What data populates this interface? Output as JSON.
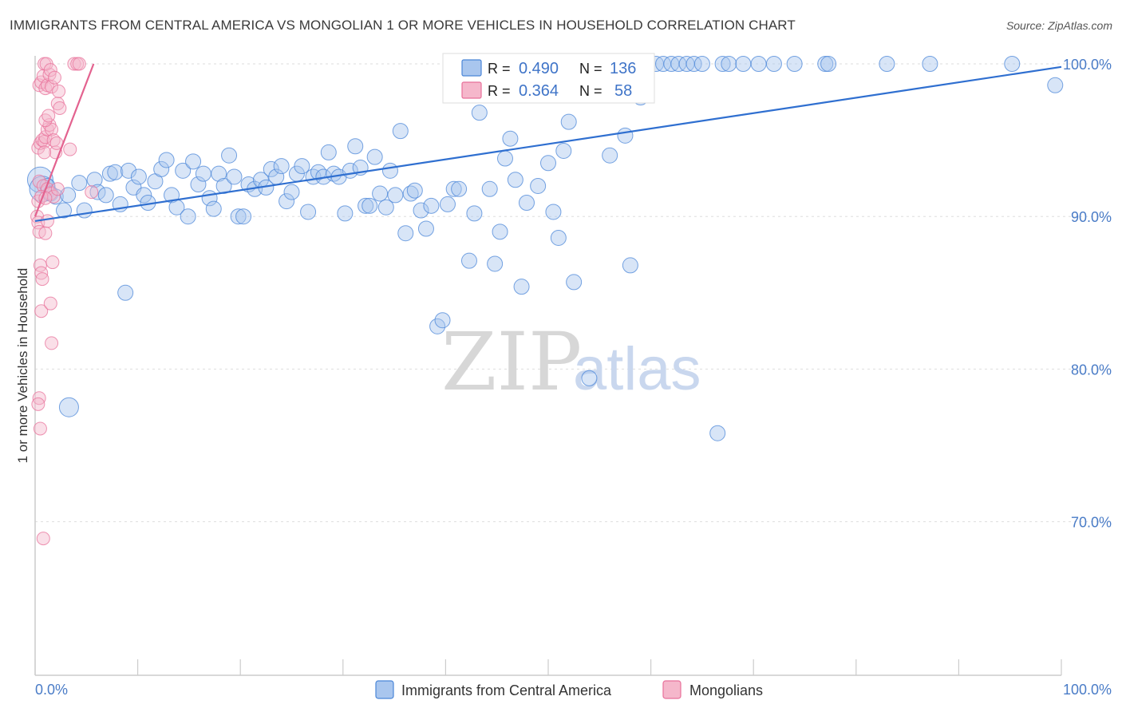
{
  "title": "IMMIGRANTS FROM CENTRAL AMERICA VS MONGOLIAN 1 OR MORE VEHICLES IN HOUSEHOLD CORRELATION CHART",
  "source": "Source: ZipAtlas.com",
  "watermark": {
    "zip": "ZIP",
    "atlas": "atlas"
  },
  "colors": {
    "blue": "#4a86d8",
    "blue_fill": "#a9c6ee",
    "blue_line": "#2f6fd0",
    "pink": "#e8709a",
    "pink_fill": "#f5b7cb",
    "pink_line": "#e3628f",
    "grid": "#dddddd",
    "tick_label": "#4a7cc7"
  },
  "legend": {
    "rows": [
      {
        "r_label": "R = ",
        "r_value": "0.490",
        "n_label": "N = ",
        "n_value": "136"
      },
      {
        "r_label": "R = ",
        "r_value": "0.364",
        "n_label": "N = ",
        "n_value": "58"
      }
    ]
  },
  "chart_data": {
    "type": "scatter",
    "xlabel": "",
    "ylabel": "1 or more Vehicles in Household",
    "xlim": [
      0,
      100
    ],
    "ylim": [
      60,
      100
    ],
    "x_tick_labels": [
      {
        "value": 0,
        "label": "0.0%"
      },
      {
        "value": 100,
        "label": "100.0%"
      }
    ],
    "y_tick_labels": [
      {
        "value": 100,
        "label": "100.0%"
      },
      {
        "value": 90,
        "label": "90.0%"
      },
      {
        "value": 80,
        "label": "80.0%"
      },
      {
        "value": 70,
        "label": "70.0%"
      }
    ],
    "grid": true,
    "legend_position": "top-center",
    "series": [
      {
        "name": "Immigrants from Central America",
        "color": "#4a86d8",
        "trend": {
          "x": [
            0,
            100
          ],
          "y": [
            89.7,
            99.8
          ]
        },
        "points": [
          [
            0.5,
            92.4
          ],
          [
            0.7,
            91.8
          ],
          [
            1.2,
            92.0
          ],
          [
            1.5,
            91.5
          ],
          [
            2.0,
            91.3
          ],
          [
            2.8,
            90.4
          ],
          [
            3.2,
            91.4
          ],
          [
            4.8,
            90.4
          ],
          [
            4.3,
            92.2
          ],
          [
            5.8,
            92.4
          ],
          [
            6.1,
            91.6
          ],
          [
            6.9,
            91.4
          ],
          [
            7.3,
            92.8
          ],
          [
            7.8,
            92.9
          ],
          [
            8.3,
            90.8
          ],
          [
            9.1,
            93.0
          ],
          [
            9.6,
            91.9
          ],
          [
            10.1,
            92.6
          ],
          [
            10.6,
            91.4
          ],
          [
            11.0,
            90.9
          ],
          [
            11.7,
            92.3
          ],
          [
            12.3,
            93.1
          ],
          [
            12.8,
            93.7
          ],
          [
            13.3,
            91.4
          ],
          [
            13.8,
            90.6
          ],
          [
            14.4,
            93.0
          ],
          [
            14.9,
            90.0
          ],
          [
            15.4,
            93.6
          ],
          [
            15.9,
            92.1
          ],
          [
            16.4,
            92.8
          ],
          [
            17.0,
            91.2
          ],
          [
            17.4,
            90.5
          ],
          [
            17.9,
            92.8
          ],
          [
            18.4,
            92.0
          ],
          [
            18.9,
            94.0
          ],
          [
            19.4,
            92.6
          ],
          [
            19.8,
            90.0
          ],
          [
            20.3,
            90.0
          ],
          [
            20.8,
            92.1
          ],
          [
            21.4,
            91.8
          ],
          [
            22.0,
            92.4
          ],
          [
            22.5,
            91.9
          ],
          [
            23.0,
            93.1
          ],
          [
            23.5,
            92.6
          ],
          [
            24.0,
            93.3
          ],
          [
            24.5,
            91.0
          ],
          [
            25.0,
            91.6
          ],
          [
            25.5,
            92.8
          ],
          [
            26.0,
            93.3
          ],
          [
            26.6,
            90.3
          ],
          [
            27.1,
            92.6
          ],
          [
            27.6,
            92.9
          ],
          [
            28.1,
            92.6
          ],
          [
            28.6,
            94.2
          ],
          [
            29.1,
            92.8
          ],
          [
            29.6,
            92.6
          ],
          [
            30.2,
            90.2
          ],
          [
            30.7,
            93.0
          ],
          [
            31.2,
            94.6
          ],
          [
            31.7,
            93.2
          ],
          [
            32.2,
            90.7
          ],
          [
            32.6,
            90.7
          ],
          [
            33.1,
            93.9
          ],
          [
            33.6,
            91.5
          ],
          [
            34.2,
            90.6
          ],
          [
            34.6,
            93.0
          ],
          [
            35.1,
            91.4
          ],
          [
            35.6,
            95.6
          ],
          [
            36.1,
            88.9
          ],
          [
            36.6,
            91.5
          ],
          [
            37.0,
            91.7
          ],
          [
            37.6,
            90.4
          ],
          [
            38.1,
            89.2
          ],
          [
            38.6,
            90.7
          ],
          [
            39.2,
            82.8
          ],
          [
            39.7,
            83.2
          ],
          [
            40.2,
            90.8
          ],
          [
            40.8,
            91.8
          ],
          [
            41.3,
            91.8
          ],
          [
            41.8,
            98.0
          ],
          [
            42.3,
            87.1
          ],
          [
            42.8,
            90.2
          ],
          [
            43.3,
            96.8
          ],
          [
            43.8,
            100.0
          ],
          [
            44.3,
            91.8
          ],
          [
            44.8,
            86.9
          ],
          [
            45.3,
            89.0
          ],
          [
            45.8,
            93.8
          ],
          [
            46.3,
            95.1
          ],
          [
            46.8,
            92.4
          ],
          [
            47.4,
            85.4
          ],
          [
            47.9,
            90.9
          ],
          [
            48.4,
            100.0
          ],
          [
            49.0,
            92.0
          ],
          [
            49.5,
            100.0
          ],
          [
            50.0,
            93.5
          ],
          [
            50.5,
            90.3
          ],
          [
            51.0,
            88.6
          ],
          [
            51.5,
            94.3
          ],
          [
            52.0,
            96.2
          ],
          [
            52.5,
            85.7
          ],
          [
            53.0,
            100.0
          ],
          [
            53.5,
            98.6
          ],
          [
            54.0,
            79.4
          ],
          [
            54.5,
            100.0
          ],
          [
            55.0,
            100.0
          ],
          [
            55.5,
            100.0
          ],
          [
            56.0,
            94.0
          ],
          [
            56.5,
            100.0
          ],
          [
            57.0,
            100.0
          ],
          [
            57.5,
            95.3
          ],
          [
            58.0,
            86.8
          ],
          [
            58.5,
            100.0
          ],
          [
            59.0,
            97.8
          ],
          [
            60.5,
            100.0
          ],
          [
            61.2,
            100.0
          ],
          [
            62.0,
            100.0
          ],
          [
            62.7,
            100.0
          ],
          [
            63.5,
            100.0
          ],
          [
            64.2,
            100.0
          ],
          [
            65.0,
            100.0
          ],
          [
            66.5,
            75.8
          ],
          [
            67.0,
            100.0
          ],
          [
            67.6,
            100.0
          ],
          [
            69.0,
            100.0
          ],
          [
            70.5,
            100.0
          ],
          [
            72.0,
            100.0
          ],
          [
            74.0,
            100.0
          ],
          [
            77.0,
            100.0
          ],
          [
            77.3,
            100.0
          ],
          [
            83.0,
            100.0
          ],
          [
            87.2,
            100.0
          ],
          [
            95.2,
            100.0
          ],
          [
            99.4,
            98.6
          ],
          [
            3.3,
            77.5
          ],
          [
            8.8,
            85.0
          ]
        ]
      },
      {
        "name": "Mongolians",
        "color": "#e8709a",
        "trend": {
          "x": [
            0,
            5.7
          ],
          "y": [
            90.0,
            100.0
          ]
        },
        "points": [
          [
            0.2,
            90.0
          ],
          [
            0.3,
            89.6
          ],
          [
            0.4,
            89.0
          ],
          [
            0.5,
            86.8
          ],
          [
            0.6,
            86.3
          ],
          [
            0.7,
            85.9
          ],
          [
            0.6,
            83.8
          ],
          [
            0.4,
            78.1
          ],
          [
            0.3,
            77.7
          ],
          [
            0.5,
            76.1
          ],
          [
            0.8,
            68.9
          ],
          [
            1.0,
            88.9
          ],
          [
            1.2,
            89.7
          ],
          [
            1.5,
            84.3
          ],
          [
            1.6,
            81.7
          ],
          [
            1.7,
            87.0
          ],
          [
            0.3,
            94.5
          ],
          [
            0.5,
            94.8
          ],
          [
            0.7,
            95.0
          ],
          [
            0.9,
            94.9
          ],
          [
            1.0,
            95.2
          ],
          [
            1.2,
            95.7
          ],
          [
            1.4,
            96.0
          ],
          [
            1.6,
            95.7
          ],
          [
            1.8,
            95.0
          ],
          [
            2.0,
            94.2
          ],
          [
            2.1,
            94.8
          ],
          [
            0.4,
            98.6
          ],
          [
            0.6,
            98.8
          ],
          [
            0.8,
            99.2
          ],
          [
            1.0,
            98.4
          ],
          [
            1.2,
            98.6
          ],
          [
            1.4,
            99.3
          ],
          [
            1.6,
            98.5
          ],
          [
            2.2,
            97.4
          ],
          [
            2.4,
            97.1
          ],
          [
            1.0,
            96.3
          ],
          [
            1.3,
            96.6
          ],
          [
            0.9,
            100.0
          ],
          [
            1.1,
            100.0
          ],
          [
            1.5,
            99.6
          ],
          [
            3.8,
            100.0
          ],
          [
            4.1,
            100.0
          ],
          [
            4.3,
            100.0
          ],
          [
            2.3,
            98.2
          ],
          [
            0.4,
            92.3
          ],
          [
            0.8,
            92.0
          ],
          [
            1.2,
            91.8
          ],
          [
            1.5,
            91.5
          ],
          [
            1.8,
            91.3
          ],
          [
            2.2,
            91.8
          ],
          [
            0.3,
            91.0
          ],
          [
            0.6,
            91.3
          ],
          [
            1.0,
            91.2
          ],
          [
            5.5,
            91.6
          ],
          [
            0.9,
            94.2
          ],
          [
            3.4,
            94.4
          ],
          [
            1.9,
            99.1
          ]
        ]
      }
    ]
  }
}
